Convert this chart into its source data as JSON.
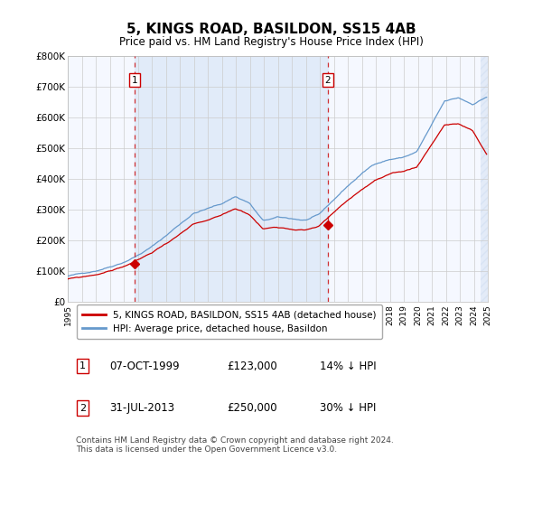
{
  "title": "5, KINGS ROAD, BASILDON, SS15 4AB",
  "subtitle": "Price paid vs. HM Land Registry's House Price Index (HPI)",
  "ylabel_ticks": [
    "£0",
    "£100K",
    "£200K",
    "£300K",
    "£400K",
    "£500K",
    "£600K",
    "£700K",
    "£800K"
  ],
  "ylim": [
    0,
    800000
  ],
  "xlim_start": 1995.0,
  "xlim_end": 2025.0,
  "plot_bg_color": "#f0f4fc",
  "hpi_color": "#6699cc",
  "price_color": "#cc0000",
  "dashed_line_color": "#cc0000",
  "shade_fill_color": "#dce8f8",
  "sale1_x": 1999.78,
  "sale1_y": 123000,
  "sale2_x": 2013.58,
  "sale2_y": 250000,
  "legend_label1": "5, KINGS ROAD, BASILDON, SS15 4AB (detached house)",
  "legend_label2": "HPI: Average price, detached house, Basildon",
  "annot1_date": "07-OCT-1999",
  "annot1_price": "£123,000",
  "annot1_hpi": "14% ↓ HPI",
  "annot2_date": "31-JUL-2013",
  "annot2_price": "£250,000",
  "annot2_hpi": "30% ↓ HPI",
  "footer": "Contains HM Land Registry data © Crown copyright and database right 2024.\nThis data is licensed under the Open Government Licence v3.0."
}
